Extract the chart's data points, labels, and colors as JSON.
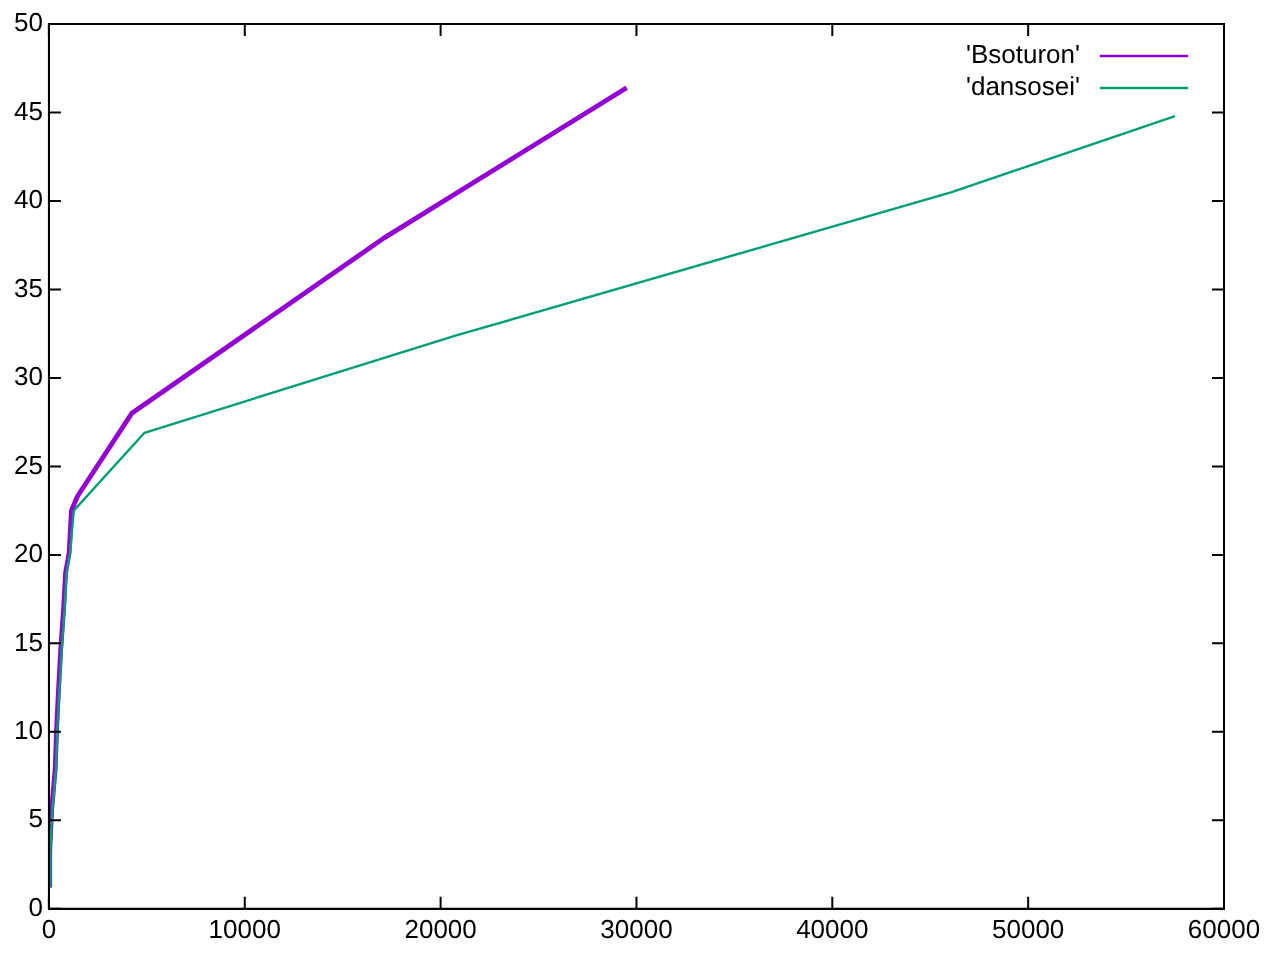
{
  "chart_data": {
    "type": "line",
    "xlim": [
      0,
      60000
    ],
    "ylim": [
      0,
      50
    ],
    "xticks": [
      0,
      10000,
      20000,
      30000,
      40000,
      50000,
      60000
    ],
    "yticks": [
      0,
      5,
      10,
      15,
      20,
      25,
      30,
      35,
      40,
      45,
      50
    ],
    "grid": false,
    "legend": "top right",
    "marker": "none",
    "line_style": "solid",
    "series": [
      {
        "name": "'Bsoturon'",
        "color": "#9400d3",
        "x": [
          40,
          40,
          140,
          320,
          390,
          490,
          600,
          750,
          850,
          1030,
          1150,
          1450,
          4230,
          17100,
          29500
        ],
        "values": [
          1.2,
          3.2,
          5.6,
          7.9,
          10.1,
          12.4,
          14.6,
          17,
          19,
          20.1,
          22.5,
          23.3,
          28,
          37.9,
          46.4
        ]
      },
      {
        "name": "'dansosei'",
        "color": "#009e73",
        "x": [
          70,
          70,
          180,
          360,
          430,
          540,
          650,
          800,
          900,
          1080,
          1270,
          4880,
          20800,
          46100,
          57500
        ],
        "values": [
          1.2,
          3.2,
          5.6,
          7.9,
          10.1,
          12.4,
          14.6,
          17,
          19,
          20.1,
          22.5,
          26.9,
          32.4,
          40.5,
          44.8
        ]
      }
    ]
  }
}
